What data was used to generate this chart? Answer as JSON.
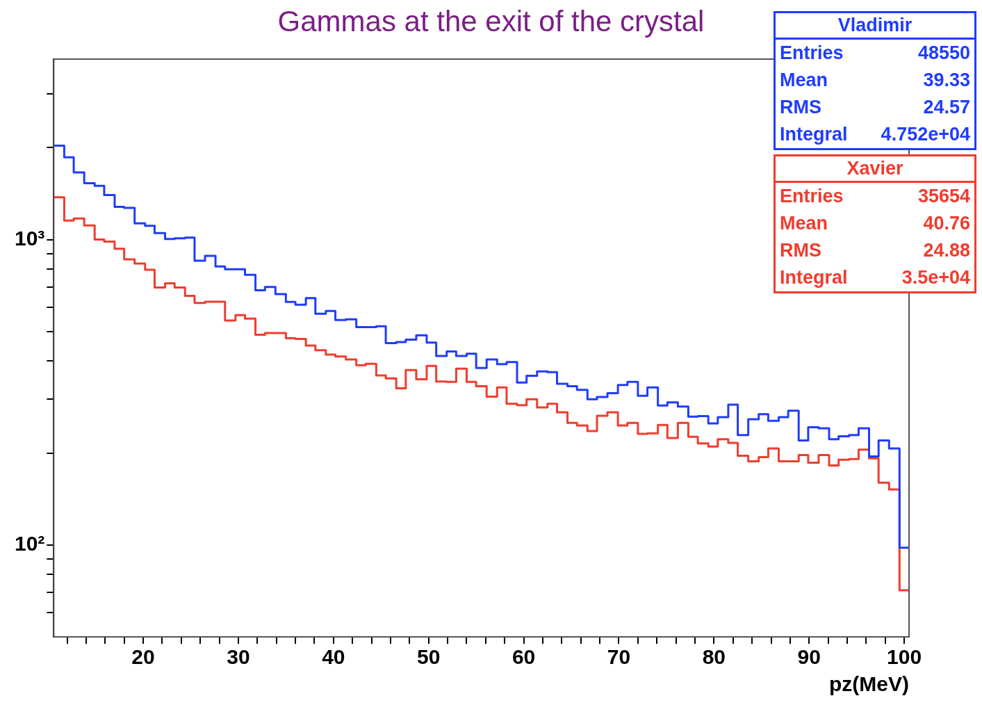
{
  "chart_data": {
    "type": "histogram",
    "title": "Gammas at the exit of the crystal",
    "xlabel": "pz(MeV)",
    "bins": [
      10.6,
      11.7,
      12.7,
      13.8,
      14.9,
      15.9,
      17.0,
      18.0,
      19.1,
      20.2,
      21.2,
      22.3,
      23.3,
      24.4,
      25.4,
      26.5,
      27.6,
      28.6,
      29.7,
      30.7,
      31.8,
      32.8,
      33.9,
      35.0,
      36.0,
      37.1,
      38.1,
      39.2,
      40.2,
      41.3,
      42.4,
      43.4,
      44.5,
      45.5,
      46.6,
      47.6,
      48.7,
      49.8,
      50.8,
      51.9,
      52.9,
      54.0,
      55.0,
      56.1,
      57.2,
      58.2,
      59.3,
      60.3,
      61.4,
      62.5,
      63.5,
      64.6,
      65.6,
      66.7,
      67.7,
      68.8,
      69.9,
      70.9,
      72.0,
      73.0,
      74.1,
      75.1,
      76.2,
      77.3,
      78.3,
      79.4,
      80.4,
      81.5,
      82.5,
      83.6,
      84.7,
      85.7,
      86.8,
      87.8,
      88.9,
      89.9,
      91.0,
      92.1,
      93.1,
      94.2,
      95.2,
      96.3,
      97.3,
      98.4,
      99.5,
      100.5
    ],
    "series": [
      {
        "name": "Vladimir",
        "color": "#1f3cff",
        "values": [
          2030,
          1860,
          1660,
          1530,
          1500,
          1400,
          1280,
          1270,
          1130,
          1110,
          1050,
          1005,
          1010,
          1015,
          853,
          885,
          817,
          800,
          800,
          767,
          682,
          700,
          663,
          625,
          612,
          643,
          572,
          584,
          545,
          548,
          517,
          517,
          520,
          458,
          462,
          470,
          486,
          460,
          416,
          430,
          416,
          423,
          380,
          405,
          391,
          397,
          340,
          358,
          370,
          368,
          337,
          331,
          322,
          300,
          305,
          314,
          334,
          342,
          308,
          328,
          286,
          293,
          284,
          263,
          264,
          250,
          262,
          288,
          229,
          258,
          268,
          255,
          262,
          275,
          220,
          243,
          241,
          222,
          227,
          229,
          241,
          195,
          220,
          207,
          98
        ]
      },
      {
        "name": "Xavier",
        "color": "#f03c2e",
        "values": [
          1376,
          1154,
          1172,
          1112,
          1000,
          985,
          933,
          862,
          835,
          796,
          697,
          719,
          697,
          654,
          620,
          626,
          626,
          543,
          566,
          551,
          488,
          494,
          494,
          475,
          473,
          450,
          434,
          420,
          414,
          405,
          388,
          392,
          359,
          351,
          326,
          374,
          349,
          386,
          343,
          342,
          378,
          342,
          331,
          306,
          328,
          290,
          287,
          300,
          282,
          290,
          272,
          251,
          246,
          236,
          265,
          272,
          246,
          251,
          231,
          232,
          247,
          224,
          251,
          226,
          215,
          210,
          222,
          216,
          196,
          188,
          194,
          207,
          188,
          188,
          197,
          186,
          197,
          182,
          190,
          191,
          205,
          192,
          160,
          152,
          71
        ]
      }
    ],
    "xlim": [
      10.6,
      100.5
    ],
    "xticks": [
      {
        "value": 12,
        "label": null
      },
      {
        "value": 14,
        "label": null
      },
      {
        "value": 16,
        "label": null
      },
      {
        "value": 18,
        "label": null
      },
      20,
      {
        "value": 22,
        "label": null
      },
      {
        "value": 24,
        "label": null
      },
      {
        "value": 26,
        "label": null
      },
      {
        "value": 28,
        "label": null
      },
      30,
      {
        "value": 32,
        "label": null
      },
      {
        "value": 34,
        "label": null
      },
      {
        "value": 36,
        "label": null
      },
      {
        "value": 38,
        "label": null
      },
      40,
      {
        "value": 42,
        "label": null
      },
      {
        "value": 44,
        "label": null
      },
      {
        "value": 46,
        "label": null
      },
      {
        "value": 48,
        "label": null
      },
      50,
      {
        "value": 52,
        "label": null
      },
      {
        "value": 54,
        "label": null
      },
      {
        "value": 56,
        "label": null
      },
      {
        "value": 58,
        "label": null
      },
      60,
      {
        "value": 62,
        "label": null
      },
      {
        "value": 64,
        "label": null
      },
      {
        "value": 66,
        "label": null
      },
      {
        "value": 68,
        "label": null
      },
      70,
      {
        "value": 72,
        "label": null
      },
      {
        "value": 74,
        "label": null
      },
      {
        "value": 76,
        "label": null
      },
      {
        "value": 78,
        "label": null
      },
      80,
      {
        "value": 82,
        "label": null
      },
      {
        "value": 84,
        "label": null
      },
      {
        "value": 86,
        "label": null
      },
      {
        "value": 88,
        "label": null
      },
      90,
      {
        "value": 92,
        "label": null
      },
      {
        "value": 94,
        "label": null
      },
      {
        "value": 96,
        "label": null
      },
      {
        "value": 98,
        "label": null
      },
      100
    ],
    "ylim": [
      50,
      3900
    ],
    "yticks": [
      {
        "value": 60,
        "label": null
      },
      {
        "value": 70,
        "label": null
      },
      {
        "value": 80,
        "label": null
      },
      {
        "value": 90,
        "label": null
      },
      {
        "value": 100,
        "label": "10²"
      },
      {
        "value": 200,
        "label": null
      },
      {
        "value": 300,
        "label": null
      },
      {
        "value": 400,
        "label": null
      },
      {
        "value": 500,
        "label": null
      },
      {
        "value": 600,
        "label": null
      },
      {
        "value": 700,
        "label": null
      },
      {
        "value": 800,
        "label": null
      },
      {
        "value": 900,
        "label": null
      },
      {
        "value": 1000,
        "label": "10³"
      },
      {
        "value": 2000,
        "label": null
      },
      {
        "value": 3000,
        "label": null
      }
    ],
    "log": "y",
    "grid": false,
    "legend": "top right",
    "annotations": [
      "Entries",
      "48550",
      "Mean",
      "39.33",
      "RMS",
      "24.57",
      "Integral",
      "4.752e+04",
      "Entries",
      "35654",
      "Mean",
      "40.76",
      "RMS",
      "24.88",
      "Integral",
      "3.5e+04"
    ]
  }
}
